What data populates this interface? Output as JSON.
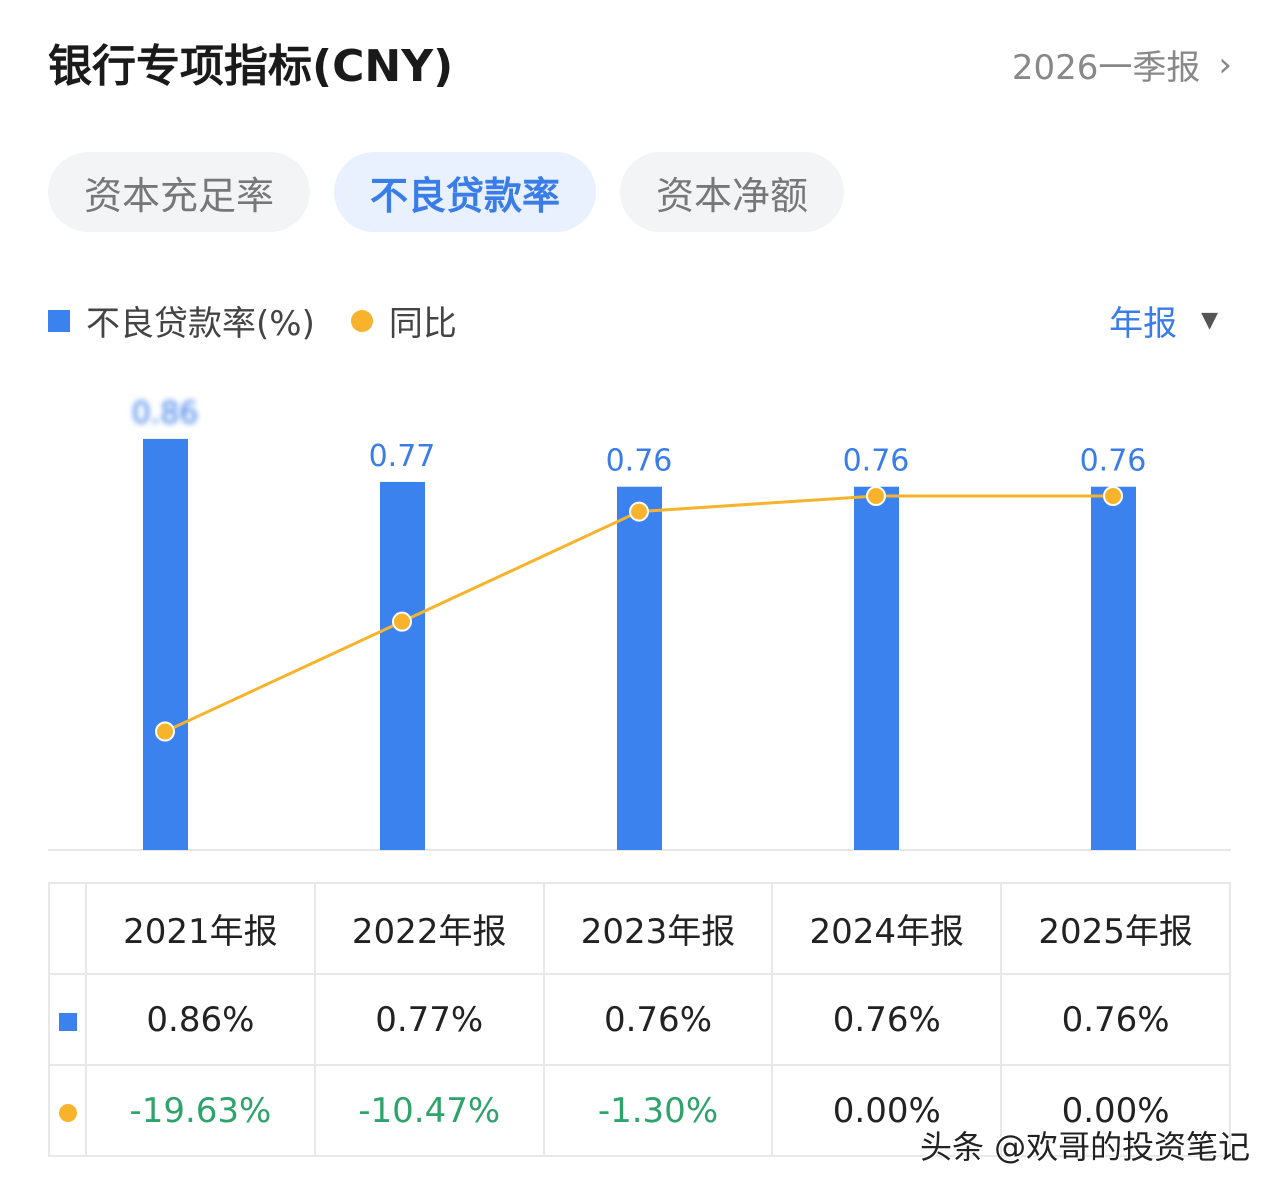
{
  "header": {
    "title": "银行专项指标(CNY)",
    "period": "2026一季报"
  },
  "tabs": [
    {
      "label": "资本充足率"
    },
    {
      "label": "不良贷款率",
      "active": true
    },
    {
      "label": "资本净额"
    }
  ],
  "legend": {
    "bar": "不良贷款率(%)",
    "line": "同比"
  },
  "period_type": "年报",
  "colors": {
    "bar": "#3b82ee",
    "line": "#f7b32b",
    "negative": "#2ea36b",
    "accent": "#3a7de8"
  },
  "chart_data": {
    "type": "bar+line",
    "categories": [
      "2021年报",
      "2022年报",
      "2023年报",
      "2024年报",
      "2025年报"
    ],
    "series": [
      {
        "name": "不良贷款率(%)",
        "type": "bar",
        "values": [
          0.86,
          0.77,
          0.76,
          0.76,
          0.76
        ],
        "labels": [
          "0.86",
          "0.77",
          "0.76",
          "0.76",
          "0.76"
        ]
      },
      {
        "name": "同比",
        "type": "line",
        "values": [
          -19.63,
          -10.47,
          -1.3,
          0.0,
          0.0
        ]
      }
    ]
  },
  "table": {
    "headers": [
      "2021年报",
      "2022年报",
      "2023年报",
      "2024年报",
      "2025年报"
    ],
    "rate_row": [
      "0.86%",
      "0.77%",
      "0.76%",
      "0.76%",
      "0.76%"
    ],
    "yoy_row": [
      "-19.63%",
      "-10.47%",
      "-1.30%",
      "0.00%",
      "0.00%"
    ]
  },
  "watermark": "头条 @欢哥的投资笔记"
}
